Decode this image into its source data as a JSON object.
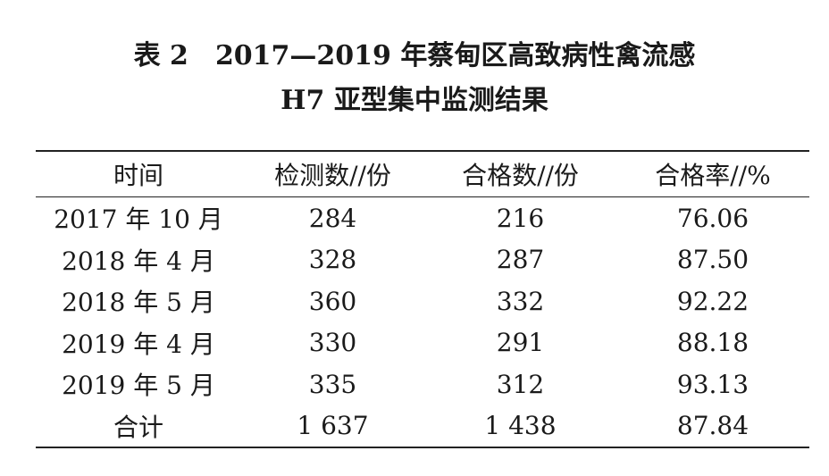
{
  "caption": {
    "label": "表 2",
    "line1": "2017—2019 年蔡甸区高致病性禽流感",
    "line2": "H7 亚型集中监测结果"
  },
  "table": {
    "headers": [
      "时间",
      "检测数//份",
      "合格数//份",
      "合格率//%"
    ],
    "rows": [
      [
        "2017 年 10 月",
        "284",
        "216",
        "76.06"
      ],
      [
        "2018 年 4 月",
        "328",
        "287",
        "87.50"
      ],
      [
        "2018 年 5 月",
        "360",
        "332",
        "92.22"
      ],
      [
        "2019 年 4 月",
        "330",
        "291",
        "88.18"
      ],
      [
        "2019 年 5 月",
        "335",
        "312",
        "93.13"
      ],
      [
        "合计",
        "1 637",
        "1 438",
        "87.84"
      ]
    ]
  }
}
